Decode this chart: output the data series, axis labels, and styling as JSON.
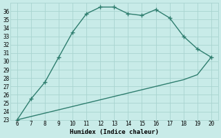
{
  "xlabel": "Humidex (Indice chaleur)",
  "upper_x": [
    6,
    7,
    8,
    9,
    10,
    11,
    12,
    13,
    14,
    15,
    16,
    17,
    18,
    19,
    20
  ],
  "upper_y": [
    23,
    25.5,
    27.5,
    30.5,
    33.5,
    35.7,
    36.5,
    36.5,
    35.7,
    35.5,
    36.2,
    35.2,
    33.0,
    31.5,
    30.5
  ],
  "lower_x": [
    6,
    7,
    8,
    9,
    10,
    11,
    12,
    13,
    14,
    15,
    16,
    17,
    18,
    19,
    20
  ],
  "lower_y": [
    23,
    23.4,
    23.8,
    24.2,
    24.6,
    25.0,
    25.4,
    25.8,
    26.2,
    26.6,
    27.0,
    27.4,
    27.8,
    28.4,
    30.5
  ],
  "line_color": "#2e7d6e",
  "bg_color": "#c8ebe8",
  "grid_color": "#a8d4d0",
  "xlim": [
    5.5,
    20.5
  ],
  "ylim": [
    23,
    37
  ],
  "xticks": [
    6,
    7,
    8,
    9,
    10,
    11,
    12,
    13,
    14,
    15,
    16,
    17,
    18,
    19,
    20
  ],
  "yticks": [
    23,
    24,
    25,
    26,
    27,
    28,
    29,
    30,
    31,
    32,
    33,
    34,
    35,
    36
  ],
  "tick_fontsize": 5.5,
  "label_fontsize": 6.5,
  "marker": "+",
  "marker_size": 4,
  "linewidth": 1.0
}
